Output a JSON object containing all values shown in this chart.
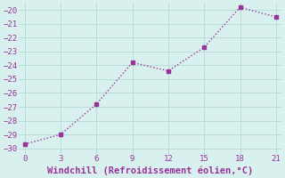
{
  "x": [
    0,
    3,
    6,
    9,
    12,
    15,
    18,
    21
  ],
  "y": [
    -29.7,
    -29.0,
    -26.8,
    -23.8,
    -24.4,
    -22.7,
    -19.8,
    -20.5
  ],
  "line_color": "#993399",
  "marker": "s",
  "marker_size": 2.5,
  "bg_color": "#d8f0ee",
  "xlabel": "Windchill (Refroidissement éolien,°C)",
  "xlabel_color": "#993399",
  "xlim": [
    -0.5,
    21.5
  ],
  "ylim": [
    -30.4,
    -19.5
  ],
  "xticks": [
    0,
    3,
    6,
    9,
    12,
    15,
    18,
    21
  ],
  "yticks": [
    -30,
    -29,
    -28,
    -27,
    -26,
    -25,
    -24,
    -23,
    -22,
    -21,
    -20
  ],
  "grid_color": "#b8ddd8",
  "tick_color": "#993399",
  "tick_fontsize": 6.5,
  "xlabel_fontsize": 7.5,
  "line_width": 1.0
}
